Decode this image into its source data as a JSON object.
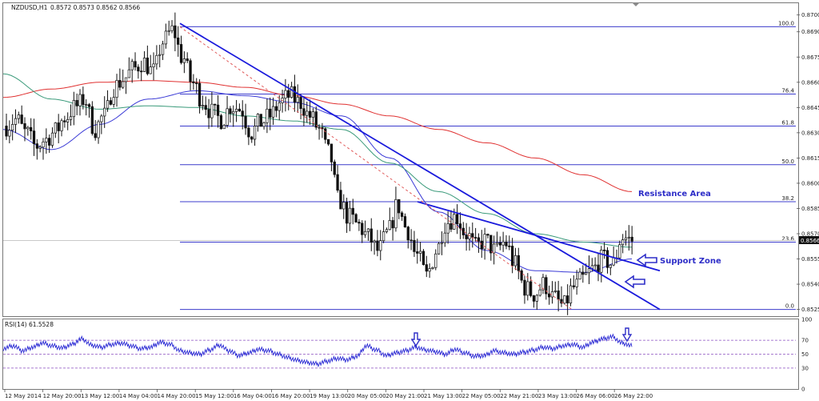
{
  "header": {
    "symbol": "NZDUSD,H1",
    "ohlc": "0.8572 0.8573 0.8562 0.8566"
  },
  "rsi_header": "RSI(14) 61.5528",
  "current_price_label": "0.8566",
  "annotations": {
    "resistance": "Resistance Area",
    "support": "Support Zone"
  },
  "colors": {
    "candle": "#111111",
    "sma_red": "#e03131",
    "sma_blue": "#3b3bd6",
    "sma_teal": "#3a9a7a",
    "trend": "#1a1adc",
    "fib": "#3c3ccc",
    "rsi": "#2a2ad4"
  },
  "chart_data": [
    {
      "type": "candlestick",
      "title": "NZDUSD,H1",
      "ylim": [
        0.8521,
        0.8707
      ],
      "price_ticks": [
        "0.8700",
        "0.8690",
        "0.8675",
        "0.8660",
        "0.8645",
        "0.8630",
        "0.8615",
        "0.8600",
        "0.8585",
        "0.8570",
        "0.8555",
        "0.8540",
        "0.8525"
      ],
      "time_ticks": [
        "12 May 2014",
        "12 May 20:00",
        "13 May 12:00",
        "14 May 04:00",
        "14 May 20:00",
        "15 May 12:00",
        "16 May 04:00",
        "16 May 20:00",
        "19 May 13:00",
        "20 May 05:00",
        "20 May 21:00",
        "21 May 13:00",
        "22 May 05:00",
        "22 May 21:00",
        "23 May 13:00",
        "26 May 06:00",
        "26 May 22:00"
      ],
      "close_path": [
        0.8634,
        0.8638,
        0.863,
        0.8622,
        0.8626,
        0.8631,
        0.8639,
        0.8645,
        0.865,
        0.8632,
        0.864,
        0.8657,
        0.8662,
        0.8668,
        0.8672,
        0.8666,
        0.8684,
        0.8691,
        0.8675,
        0.866,
        0.865,
        0.8642,
        0.8638,
        0.8646,
        0.8644,
        0.863,
        0.8636,
        0.864,
        0.8648,
        0.8652,
        0.8648,
        0.864,
        0.8632,
        0.8618,
        0.859,
        0.858,
        0.8575,
        0.8568,
        0.856,
        0.857,
        0.8587,
        0.8572,
        0.8557,
        0.8545,
        0.856,
        0.8577,
        0.858,
        0.857,
        0.8562,
        0.8566,
        0.856,
        0.8565,
        0.8552,
        0.8538,
        0.8534,
        0.854,
        0.8532,
        0.8527,
        0.8538,
        0.8543,
        0.8549,
        0.8555,
        0.8552,
        0.8568,
        0.8566
      ],
      "fibonacci": [
        {
          "level": "100.0",
          "price": 0.8693
        },
        {
          "level": "76.4",
          "price": 0.8653
        },
        {
          "level": "61.8",
          "price": 0.8634
        },
        {
          "level": "50.0",
          "price": 0.8611
        },
        {
          "level": "38.2",
          "price": 0.8589
        },
        {
          "level": "23.6",
          "price": 0.8565
        },
        {
          "level": "0.0",
          "price": 0.8525
        }
      ],
      "series": [
        {
          "type": "sma",
          "color": "#e03131",
          "values": [
            0.8651,
            0.8656,
            0.866,
            0.8661,
            0.866,
            0.8657,
            0.8652,
            0.8647,
            0.864,
            0.8632,
            0.8624,
            0.8615,
            0.8605,
            0.8595
          ]
        },
        {
          "type": "sma",
          "color": "#3b3bd6",
          "values": [
            0.8632,
            0.862,
            0.8635,
            0.865,
            0.8655,
            0.8652,
            0.8648,
            0.864,
            0.8615,
            0.8583,
            0.856,
            0.8548,
            0.8547,
            0.8555
          ]
        },
        {
          "type": "sma",
          "color": "#3a9a7a",
          "values": [
            0.8665,
            0.865,
            0.8644,
            0.8646,
            0.8645,
            0.864,
            0.8637,
            0.8632,
            0.8612,
            0.8595,
            0.8582,
            0.857,
            0.8565,
            0.8562
          ]
        }
      ]
    },
    {
      "type": "line",
      "title": "RSI(14) 61.5528",
      "ylim": [
        0,
        100
      ],
      "y_ticks": [
        "100",
        "70",
        "50",
        "30",
        "0"
      ],
      "levels": [
        70,
        50,
        30
      ],
      "values": [
        58,
        62,
        55,
        60,
        66,
        62,
        59,
        64,
        72,
        63,
        60,
        64,
        66,
        62,
        58,
        60,
        67,
        64,
        55,
        52,
        50,
        56,
        63,
        55,
        48,
        52,
        57,
        55,
        50,
        45,
        41,
        38,
        36,
        40,
        44,
        42,
        47,
        62,
        56,
        48,
        52,
        55,
        60,
        56,
        54,
        50,
        57,
        52,
        47,
        48,
        55,
        52,
        50,
        53,
        56,
        60,
        58,
        62,
        64,
        60,
        67,
        72,
        75,
        66,
        62
      ]
    }
  ]
}
